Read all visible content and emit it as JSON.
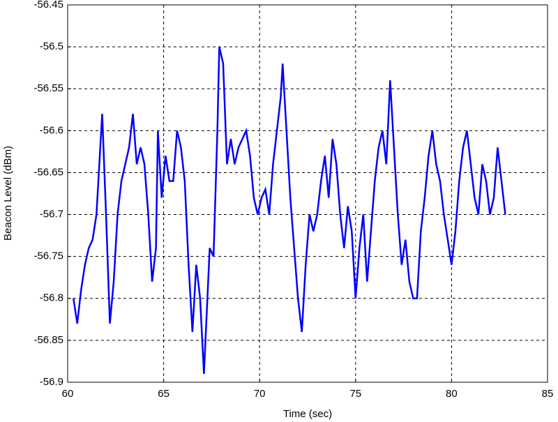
{
  "chart_data": {
    "type": "line",
    "xlabel": "Time (sec)",
    "ylabel": "Beacon Level (dBm)",
    "xlim": [
      60,
      85
    ],
    "xticks": [
      60,
      65,
      70,
      75,
      80,
      85
    ],
    "ylim": [
      -56.9,
      -56.45
    ],
    "yticks": [
      -56.45,
      -56.5,
      -56.55,
      -56.6,
      -56.65,
      -56.7,
      -56.75,
      -56.8,
      -56.85,
      -56.9
    ],
    "grid": true,
    "color": "#0000ff",
    "x": [
      60.3,
      60.5,
      60.7,
      60.9,
      61.1,
      61.3,
      61.5,
      61.7,
      61.8,
      62.0,
      62.2,
      62.4,
      62.6,
      62.8,
      63.0,
      63.2,
      63.4,
      63.6,
      63.8,
      64.0,
      64.2,
      64.4,
      64.6,
      64.7,
      64.9,
      65.1,
      65.3,
      65.5,
      65.7,
      65.9,
      66.1,
      66.3,
      66.5,
      66.7,
      66.9,
      67.1,
      67.2,
      67.4,
      67.6,
      67.8,
      67.9,
      68.1,
      68.3,
      68.5,
      68.7,
      68.9,
      69.1,
      69.3,
      69.5,
      69.7,
      69.9,
      70.1,
      70.3,
      70.5,
      70.7,
      70.9,
      71.1,
      71.2,
      71.4,
      71.6,
      71.8,
      72.0,
      72.2,
      72.4,
      72.6,
      72.8,
      73.0,
      73.2,
      73.4,
      73.6,
      73.8,
      74.0,
      74.2,
      74.4,
      74.6,
      74.8,
      75.0,
      75.2,
      75.4,
      75.6,
      75.8,
      76.0,
      76.2,
      76.4,
      76.6,
      76.8,
      77.0,
      77.2,
      77.4,
      77.6,
      77.8,
      78.0,
      78.2,
      78.4,
      78.6,
      78.8,
      79.0,
      79.2,
      79.4,
      79.6,
      79.8,
      80.0,
      80.2,
      80.4,
      80.6,
      80.8,
      81.0,
      81.2,
      81.4,
      81.6,
      81.8,
      82.0,
      82.2,
      82.4,
      82.6,
      82.8
    ],
    "values": [
      -56.8,
      -56.83,
      -56.79,
      -56.76,
      -56.74,
      -56.73,
      -56.7,
      -56.62,
      -56.58,
      -56.7,
      -56.83,
      -56.78,
      -56.7,
      -56.66,
      -56.64,
      -56.62,
      -56.58,
      -56.64,
      -56.62,
      -56.64,
      -56.7,
      -56.78,
      -56.74,
      -56.6,
      -56.68,
      -56.63,
      -56.66,
      -56.66,
      -56.6,
      -56.62,
      -56.66,
      -56.76,
      -56.84,
      -56.76,
      -56.8,
      -56.89,
      -56.84,
      -56.74,
      -56.75,
      -56.6,
      -56.5,
      -56.52,
      -56.64,
      -56.61,
      -56.64,
      -56.62,
      -56.61,
      -56.6,
      -56.63,
      -56.68,
      -56.7,
      -56.68,
      -56.67,
      -56.7,
      -56.64,
      -56.6,
      -56.56,
      -56.52,
      -56.6,
      -56.68,
      -56.74,
      -56.8,
      -56.84,
      -56.76,
      -56.7,
      -56.72,
      -56.7,
      -56.66,
      -56.63,
      -56.68,
      -56.61,
      -56.64,
      -56.7,
      -56.74,
      -56.69,
      -56.72,
      -56.8,
      -56.74,
      -56.7,
      -56.78,
      -56.72,
      -56.66,
      -56.62,
      -56.6,
      -56.64,
      -56.54,
      -56.62,
      -56.7,
      -56.76,
      -56.73,
      -56.78,
      -56.8,
      -56.8,
      -56.72,
      -56.68,
      -56.63,
      -56.6,
      -56.64,
      -56.66,
      -56.7,
      -56.73,
      -56.76,
      -56.72,
      -56.66,
      -56.62,
      -56.6,
      -56.64,
      -56.68,
      -56.7,
      -56.64,
      -56.66,
      -56.7,
      -56.68,
      -56.62,
      -56.66,
      -56.7
    ]
  }
}
